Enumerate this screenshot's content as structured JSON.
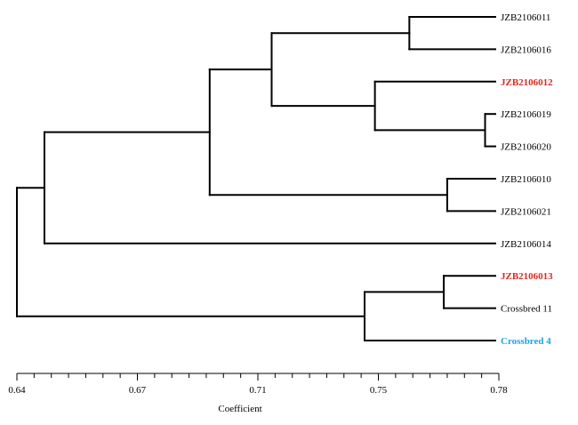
{
  "chart_data": {
    "type": "dendrogram",
    "xlabel": "Coefficient",
    "xlim": [
      0.64,
      0.78
    ],
    "ticks": [
      "0.64",
      "0.67",
      "0.71",
      "0.75",
      "0.78"
    ],
    "highlight_colors": {
      "red": "#e8241c",
      "blue": "#1aa3e8"
    },
    "leaves": [
      {
        "id": "L1",
        "label": "JZB2106011",
        "highlight": null
      },
      {
        "id": "L2",
        "label": "JZB2106016",
        "highlight": null
      },
      {
        "id": "L3",
        "label": "JZB2106012",
        "highlight": "red"
      },
      {
        "id": "L4",
        "label": "JZB2106019",
        "highlight": null
      },
      {
        "id": "L5",
        "label": "JZB2106020",
        "highlight": null
      },
      {
        "id": "L6",
        "label": "JZB2106010",
        "highlight": null
      },
      {
        "id": "L7",
        "label": "JZB2106021",
        "highlight": null
      },
      {
        "id": "L8",
        "label": "JZB2106014",
        "highlight": null
      },
      {
        "id": "L9",
        "label": "JZB2106013",
        "highlight": "red"
      },
      {
        "id": "L10",
        "label": "Crossbred 11",
        "highlight": null
      },
      {
        "id": "L11",
        "label": "Crossbred 4",
        "highlight": "blue"
      }
    ],
    "merges": [
      {
        "id": "N1",
        "height": 0.776,
        "children": [
          "L4",
          "L5"
        ]
      },
      {
        "id": "N2",
        "height": 0.765,
        "children": [
          "L6",
          "L7"
        ]
      },
      {
        "id": "N3",
        "height": 0.764,
        "children": [
          "L9",
          "L10"
        ]
      },
      {
        "id": "N4",
        "height": 0.754,
        "children": [
          "L1",
          "L2"
        ]
      },
      {
        "id": "N5",
        "height": 0.744,
        "children": [
          "L3",
          "N1"
        ]
      },
      {
        "id": "N6",
        "height": 0.741,
        "children": [
          "N3",
          "L11"
        ]
      },
      {
        "id": "N7",
        "height": 0.714,
        "children": [
          "N4",
          "N5"
        ]
      },
      {
        "id": "N8",
        "height": 0.696,
        "children": [
          "N7",
          "N2"
        ]
      },
      {
        "id": "N9",
        "height": 0.648,
        "children": [
          "N8",
          "L8"
        ]
      },
      {
        "id": "N10",
        "height": 0.64,
        "children": [
          "N9",
          "N6"
        ]
      }
    ]
  }
}
